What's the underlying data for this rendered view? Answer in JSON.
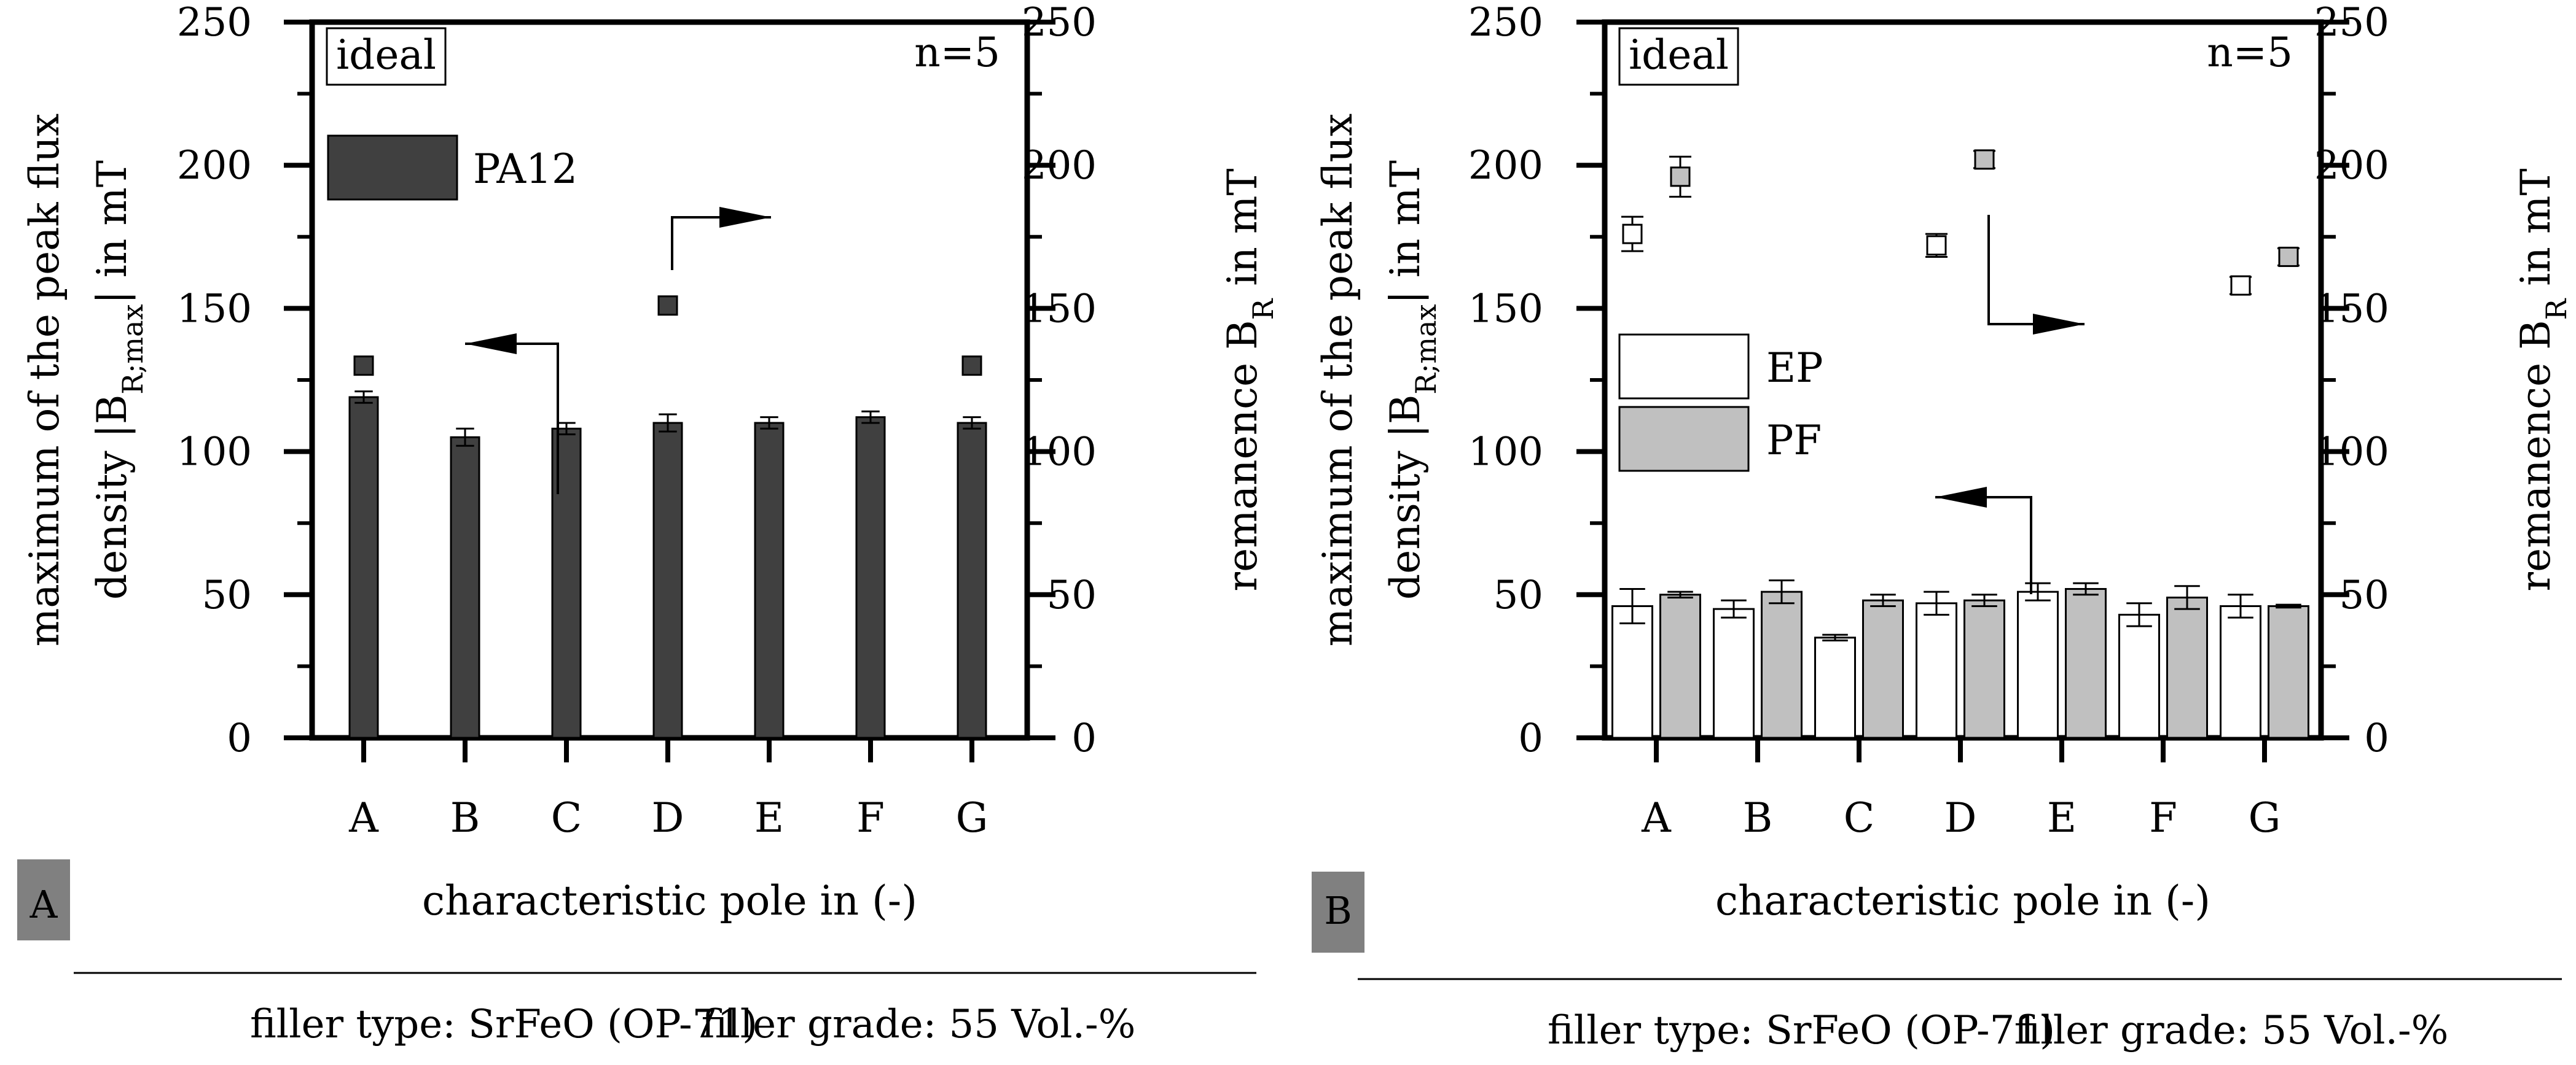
{
  "colors": {
    "pa12": "#404040",
    "ep": "#ffffff",
    "pf": "#c0c0c0",
    "badge": "#808080"
  },
  "chart_data": [
    {
      "id": "A",
      "type": "bar",
      "panel_label": "A",
      "categories": [
        "A",
        "B",
        "C",
        "D",
        "E",
        "F",
        "G"
      ],
      "xlabel": "characteristic pole in (-)",
      "ylabel_left": [
        "maximum of the peak flux",
        "density |B",
        "R;max",
        "| in mT"
      ],
      "ylabel_right": [
        "remanence B",
        "R",
        " in mT"
      ],
      "ylim": [
        0,
        250
      ],
      "yticks": [
        0,
        50,
        100,
        150,
        200,
        250
      ],
      "n_label": "n=5",
      "ideal_label": "ideal",
      "ideal_value": 250,
      "series": [
        {
          "name": "PA12",
          "color_key": "pa12",
          "values": [
            119,
            105,
            108,
            110,
            110,
            112,
            110
          ],
          "errors": [
            2,
            3,
            2,
            3,
            2,
            2,
            2
          ]
        }
      ],
      "remanence": [
        {
          "series": "PA12",
          "category": "A",
          "value": 130
        },
        {
          "series": "PA12",
          "category": "D",
          "value": 151
        },
        {
          "series": "PA12",
          "category": "G",
          "value": 130
        }
      ],
      "footer": [
        "filler type: SrFeO (OP-71)",
        "filler grade: 55 Vol.-%"
      ]
    },
    {
      "id": "B",
      "type": "bar",
      "panel_label": "B",
      "categories": [
        "A",
        "B",
        "C",
        "D",
        "E",
        "F",
        "G"
      ],
      "xlabel": "characteristic pole in (-)",
      "ylabel_left": [
        "maximum of the peak flux",
        "density |B",
        "R;max",
        "| in mT"
      ],
      "ylabel_right": [
        "remanence B",
        "R",
        " in mT"
      ],
      "ylim": [
        0,
        250
      ],
      "yticks": [
        0,
        50,
        100,
        150,
        200,
        250
      ],
      "n_label": "n=5",
      "ideal_label": "ideal",
      "ideal_value": 250,
      "series": [
        {
          "name": "EP",
          "color_key": "ep",
          "values": [
            46,
            45,
            35,
            47,
            51,
            43,
            46
          ],
          "errors": [
            6,
            3,
            1,
            4,
            3,
            4,
            4
          ]
        },
        {
          "name": "PF",
          "color_key": "pf",
          "values": [
            50,
            51,
            48,
            48,
            52,
            49,
            46
          ],
          "errors": [
            1,
            4,
            2,
            2,
            2,
            4,
            0.5
          ]
        }
      ],
      "remanence": [
        {
          "series": "EP",
          "category": "A",
          "value": 176,
          "error": 6
        },
        {
          "series": "PF",
          "category": "A",
          "value": 196,
          "error": 7
        },
        {
          "series": "EP",
          "category": "D",
          "value": 172,
          "error": 4
        },
        {
          "series": "PF",
          "category": "D",
          "value": 202,
          "error": 3
        },
        {
          "series": "EP",
          "category": "G",
          "value": 158,
          "error": 3
        },
        {
          "series": "PF",
          "category": "G",
          "value": 168,
          "error": 3
        }
      ],
      "footer": [
        "filler type: SrFeO (OP-71)",
        "filler grade: 55 Vol.-%"
      ]
    }
  ]
}
